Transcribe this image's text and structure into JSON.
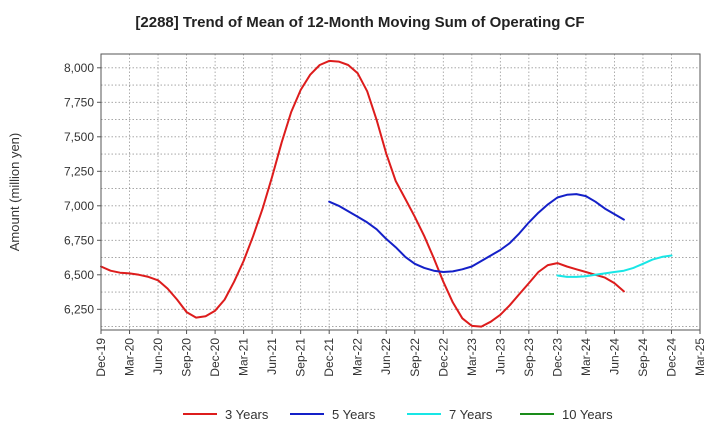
{
  "chart_data": {
    "type": "line",
    "title": "[2288]  Trend of Mean of 12-Month Moving Sum of Operating CF",
    "xlabel": "",
    "ylabel": "Amount (million yen)",
    "ylim": [
      6100,
      8100
    ],
    "yticks": [
      6250,
      6500,
      6750,
      7000,
      7250,
      7500,
      7750,
      8000
    ],
    "ytick_labels": [
      "6,250",
      "6,500",
      "6,750",
      "7,000",
      "7,250",
      "7,500",
      "7,750",
      "8,000"
    ],
    "x_categories": [
      "Dec-19",
      "Mar-20",
      "Jun-20",
      "Sep-20",
      "Dec-20",
      "Mar-21",
      "Jun-21",
      "Sep-21",
      "Dec-21",
      "Mar-22",
      "Jun-22",
      "Sep-22",
      "Dec-22",
      "Mar-23",
      "Jun-23",
      "Sep-23",
      "Dec-23",
      "Mar-24",
      "Jun-24",
      "Sep-24",
      "Dec-24",
      "Mar-25"
    ],
    "x_unit": "month index from Dec-19",
    "grid": true,
    "legend_position": "bottom",
    "series": [
      {
        "name": "3 Years",
        "color": "#dd1c1c",
        "x": [
          0,
          1,
          2,
          3,
          4,
          5,
          6,
          7,
          8,
          9,
          10,
          11,
          12,
          13,
          14,
          15,
          16,
          17,
          18,
          19,
          20,
          21,
          22,
          23,
          24,
          25,
          26,
          27,
          28,
          29,
          30,
          31,
          32,
          33,
          34,
          35,
          36,
          37,
          38,
          39,
          40,
          41,
          42,
          43,
          44,
          45,
          46,
          47,
          48,
          49,
          50,
          51,
          52,
          53,
          54,
          55,
          56,
          57,
          58,
          59,
          60
        ],
        "values": [
          6560,
          6530,
          6515,
          6510,
          6500,
          6485,
          6460,
          6400,
          6320,
          6230,
          6190,
          6200,
          6240,
          6320,
          6450,
          6600,
          6780,
          6980,
          7210,
          7460,
          7680,
          7840,
          7950,
          8020,
          8050,
          8045,
          8020,
          7960,
          7830,
          7620,
          7380,
          7180,
          7050,
          6920,
          6780,
          6620,
          6450,
          6300,
          6185,
          6130,
          6125,
          6160,
          6210,
          6280,
          6360,
          6440,
          6520,
          6570,
          6585,
          6560,
          6540,
          6520,
          6500,
          6480,
          6440,
          6380,
          null,
          null,
          null,
          null,
          null
        ]
      },
      {
        "name": "5 Years",
        "color": "#1420c8",
        "x": [
          24,
          25,
          26,
          27,
          28,
          29,
          30,
          31,
          32,
          33,
          34,
          35,
          36,
          37,
          38,
          39,
          40,
          41,
          42,
          43,
          44,
          45,
          46,
          47,
          48,
          49,
          50,
          51,
          52,
          53,
          54,
          55,
          56,
          57,
          58,
          59,
          60
        ],
        "values": [
          7030,
          7000,
          6960,
          6920,
          6880,
          6830,
          6760,
          6700,
          6630,
          6580,
          6550,
          6530,
          6520,
          6525,
          6540,
          6560,
          6600,
          6640,
          6680,
          6730,
          6800,
          6880,
          6950,
          7010,
          7060,
          7080,
          7085,
          7070,
          7030,
          6980,
          6940,
          6900,
          null,
          null,
          null,
          null,
          null
        ]
      },
      {
        "name": "7 Years",
        "color": "#18e6e6",
        "x": [
          48,
          49,
          50,
          51,
          52,
          53,
          54,
          55,
          56,
          57,
          58,
          59,
          60
        ],
        "values": [
          6495,
          6485,
          6485,
          6490,
          6500,
          6510,
          6520,
          6530,
          6550,
          6580,
          6610,
          6630,
          6640
        ]
      },
      {
        "name": "10 Years",
        "color": "#1a8c1a",
        "x": [],
        "values": []
      }
    ]
  }
}
